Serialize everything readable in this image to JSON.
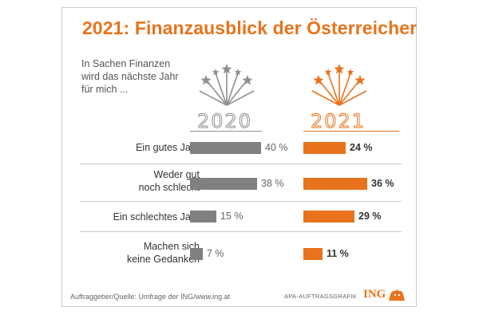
{
  "title": "2021: Finanzausblick der Österreicher",
  "intro": [
    "In Sachen Finanzen",
    "wird das nächste Jahr",
    "für mich ..."
  ],
  "colors": {
    "accent": "#e8731c",
    "grey": "#808080"
  },
  "chart_data": {
    "type": "bar",
    "orientation": "horizontal",
    "title": "2021: Finanzausblick der Österreicher",
    "categories": [
      [
        "Ein gutes Jahr"
      ],
      [
        "Weder gut",
        "noch schlecht"
      ],
      [
        "Ein schlechtes Jahr"
      ],
      [
        "Machen sich",
        "keine Gedanken"
      ]
    ],
    "series": [
      {
        "name": "2020",
        "values": [
          40,
          38,
          15,
          7
        ],
        "labels": [
          "40 %",
          "38 %",
          "15 %",
          "7 %"
        ],
        "color": "#808080"
      },
      {
        "name": "2021",
        "values": [
          24,
          36,
          29,
          11
        ],
        "labels": [
          "24 %",
          "36 %",
          "29 %",
          "11 %"
        ],
        "color": "#e8731c"
      }
    ],
    "unit": "%",
    "xlim": [
      0,
      40
    ]
  },
  "footer": {
    "source": "Auftraggeber/Quelle: Umfrage der ING/www.ing.at",
    "agency": "APA-AUFTRAGSGRAFIK",
    "logo": "ING"
  }
}
